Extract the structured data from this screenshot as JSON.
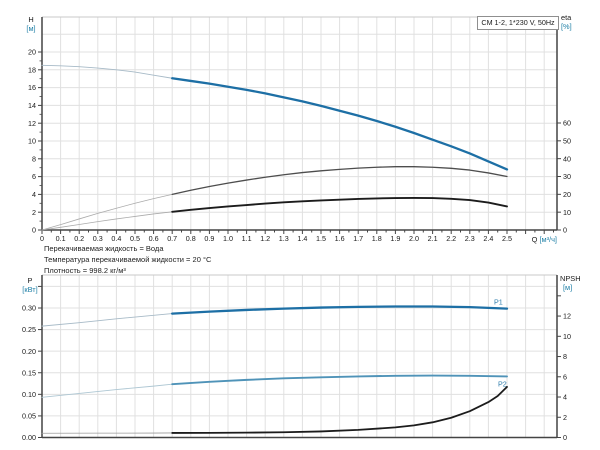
{
  "title_box": {
    "label": "CM 1-2, 1*230 V, 50Hz"
  },
  "conditions": {
    "line1": "Перекачиваемая жидкость = Вода",
    "line2": "Температура перекачиваемой жидкости = 20 °C",
    "line3": "Плотность = 998.2 кг/м³"
  },
  "axis_titles": {
    "head": "H",
    "head_unit": "[м]",
    "eta": "eta",
    "eta_unit": "[%]",
    "power": "P",
    "power_unit": "[кВт]",
    "npsh": "NPSH",
    "npsh_unit": "[м]",
    "flow": "Q",
    "flow_unit": "[м³/ч]"
  },
  "colors": {
    "accent_blue": "#1d6fa5",
    "light_blue": "#4f93b8",
    "thin_blue": "#a7bac7",
    "thin_light_blue": "#aec7d3",
    "gray_curve": "#4d4d4d",
    "thin_gray": "#ababab",
    "black_curve": "#1c1c1c",
    "thin_dark": "#9b9b9b",
    "grid": "#e0e0e0",
    "border_light": "#c9c9c9",
    "axis": "#444444",
    "tick_text": "#1a1a1a",
    "unit_text": "#1e7fa6",
    "curve_label": "#2e7cab"
  },
  "chart_data": [
    {
      "type": "line",
      "name": "head-flow-chart",
      "title": "CM 1-2, 1*230 V, 50Hz",
      "xlabel": "Q [м³/ч]",
      "ylabel_left": "H [м]",
      "ylabel_right": "eta [%]",
      "x_range": [
        0,
        2.77
      ],
      "x_data_max": 2.5,
      "x_tick_step": 0.1,
      "x_minor_step": 0.05,
      "x_tick_labels": [
        "0",
        "0.1",
        "0.2",
        "0.3",
        "0.4",
        "0.5",
        "0.6",
        "0.7",
        "0.8",
        "0.9",
        "1.0",
        "1.1",
        "1.2",
        "1.3",
        "1.4",
        "1.5",
        "1.6",
        "1.7",
        "1.8",
        "1.9",
        "2.0",
        "2.1",
        "2.2",
        "2.3",
        "2.4",
        "2.5"
      ],
      "y_left_ticks": [
        [
          "0",
          0
        ],
        [
          "2",
          2
        ],
        [
          "4",
          4
        ],
        [
          "6",
          6
        ],
        [
          "8",
          8
        ],
        [
          "10",
          10
        ],
        [
          "12",
          12
        ],
        [
          "14",
          14
        ],
        [
          "16",
          16
        ],
        [
          "18",
          18
        ],
        [
          "20",
          20
        ]
      ],
      "y_left_grid_step": 2,
      "y_right_ticks": [
        [
          "0",
          0
        ],
        [
          "10",
          10
        ],
        [
          "20",
          20
        ],
        [
          "30",
          30
        ],
        [
          "40",
          40
        ],
        [
          "50",
          50
        ],
        [
          "60",
          60
        ]
      ],
      "grid": true,
      "legend_position": "none",
      "duty_range_start": 0.7,
      "series": [
        {
          "name": "H",
          "axis": "left",
          "points": [
            [
              0,
              18.5
            ],
            [
              0.1,
              18.45
            ],
            [
              0.2,
              18.35
            ],
            [
              0.3,
              18.2
            ],
            [
              0.4,
              18.0
            ],
            [
              0.5,
              17.75
            ],
            [
              0.6,
              17.4
            ],
            [
              0.7,
              17.05
            ],
            [
              0.8,
              16.75
            ],
            [
              0.9,
              16.45
            ],
            [
              1.0,
              16.1
            ],
            [
              1.1,
              15.75
            ],
            [
              1.2,
              15.35
            ],
            [
              1.3,
              14.9
            ],
            [
              1.4,
              14.45
            ],
            [
              1.5,
              13.95
            ],
            [
              1.6,
              13.4
            ],
            [
              1.7,
              12.85
            ],
            [
              1.8,
              12.25
            ],
            [
              1.9,
              11.6
            ],
            [
              2.0,
              10.9
            ],
            [
              2.1,
              10.15
            ],
            [
              2.2,
              9.4
            ],
            [
              2.3,
              8.6
            ],
            [
              2.4,
              7.7
            ],
            [
              2.5,
              6.8
            ]
          ]
        },
        {
          "name": "eta-pump",
          "axis": "right",
          "points": [
            [
              0,
              0
            ],
            [
              0.1,
              3
            ],
            [
              0.2,
              6.2
            ],
            [
              0.3,
              9.3
            ],
            [
              0.4,
              12.2
            ],
            [
              0.5,
              15
            ],
            [
              0.6,
              17.6
            ],
            [
              0.7,
              20
            ],
            [
              0.8,
              22.3
            ],
            [
              0.9,
              24.4
            ],
            [
              1.0,
              26.3
            ],
            [
              1.1,
              28
            ],
            [
              1.2,
              29.6
            ],
            [
              1.3,
              31
            ],
            [
              1.4,
              32.2
            ],
            [
              1.5,
              33.2
            ],
            [
              1.6,
              34
            ],
            [
              1.7,
              34.7
            ],
            [
              1.8,
              35.2
            ],
            [
              1.9,
              35.5
            ],
            [
              2.0,
              35.5
            ],
            [
              2.1,
              35.2
            ],
            [
              2.2,
              34.6
            ],
            [
              2.3,
              33.6
            ],
            [
              2.4,
              32
            ],
            [
              2.5,
              30
            ]
          ]
        },
        {
          "name": "eta-pump-motor",
          "axis": "right",
          "points": [
            [
              0,
              0
            ],
            [
              0.1,
              1.5
            ],
            [
              0.2,
              3.1
            ],
            [
              0.3,
              4.7
            ],
            [
              0.4,
              6.2
            ],
            [
              0.5,
              7.6
            ],
            [
              0.6,
              9
            ],
            [
              0.7,
              10.2
            ],
            [
              0.8,
              11.3
            ],
            [
              0.9,
              12.3
            ],
            [
              1.0,
              13.2
            ],
            [
              1.1,
              14
            ],
            [
              1.2,
              14.8
            ],
            [
              1.3,
              15.5
            ],
            [
              1.4,
              16.1
            ],
            [
              1.5,
              16.6
            ],
            [
              1.6,
              17
            ],
            [
              1.7,
              17.4
            ],
            [
              1.8,
              17.7
            ],
            [
              1.9,
              17.9
            ],
            [
              2.0,
              18
            ],
            [
              2.1,
              17.9
            ],
            [
              2.2,
              17.5
            ],
            [
              2.3,
              16.8
            ],
            [
              2.4,
              15.4
            ],
            [
              2.5,
              13.2
            ]
          ]
        }
      ]
    },
    {
      "type": "line",
      "name": "power-npsh-chart",
      "xlabel": "",
      "ylabel_left": "P [кВт]",
      "ylabel_right": "NPSH [м]",
      "x_range": [
        0,
        2.77
      ],
      "x_data_max": 2.5,
      "x_tick_labels": [],
      "y_left_ticks": [
        [
          "0.00",
          0
        ],
        [
          "0.05",
          0.05
        ],
        [
          "0.10",
          0.1
        ],
        [
          "0.15",
          0.15
        ],
        [
          "0.20",
          0.2
        ],
        [
          "0.25",
          0.25
        ],
        [
          "0.30",
          0.3
        ],
        [
          "",
          0.35
        ]
      ],
      "y_left_grid_step": 0.05,
      "y_right_ticks": [
        [
          "0",
          0
        ],
        [
          "2",
          2
        ],
        [
          "4",
          4
        ],
        [
          "6",
          6
        ],
        [
          "8",
          8
        ],
        [
          "10",
          10
        ],
        [
          "12",
          12
        ],
        [
          "",
          14
        ]
      ],
      "grid": true,
      "legend_position": "inline-curve-labels",
      "duty_range_start": 0.7,
      "series": [
        {
          "name": "P1",
          "label": "P1",
          "axis": "left",
          "points": [
            [
              0,
              0.258
            ],
            [
              0.2,
              0.266
            ],
            [
              0.4,
              0.275
            ],
            [
              0.6,
              0.283
            ],
            [
              0.7,
              0.287
            ],
            [
              0.9,
              0.2915
            ],
            [
              1.1,
              0.2955
            ],
            [
              1.3,
              0.2985
            ],
            [
              1.5,
              0.301
            ],
            [
              1.7,
              0.3025
            ],
            [
              1.9,
              0.3035
            ],
            [
              2.1,
              0.3035
            ],
            [
              2.3,
              0.302
            ],
            [
              2.5,
              0.2985
            ]
          ]
        },
        {
          "name": "P2",
          "label": "P2",
          "axis": "left",
          "points": [
            [
              0,
              0.093
            ],
            [
              0.2,
              0.102
            ],
            [
              0.4,
              0.111
            ],
            [
              0.6,
              0.119
            ],
            [
              0.7,
              0.1235
            ],
            [
              0.9,
              0.129
            ],
            [
              1.1,
              0.1335
            ],
            [
              1.3,
              0.137
            ],
            [
              1.5,
              0.1395
            ],
            [
              1.7,
              0.1415
            ],
            [
              1.9,
              0.143
            ],
            [
              2.1,
              0.1435
            ],
            [
              2.3,
              0.143
            ],
            [
              2.5,
              0.1415
            ]
          ]
        },
        {
          "name": "NPSH",
          "axis": "right",
          "points": [
            [
              0,
              0.42
            ],
            [
              0.3,
              0.43
            ],
            [
              0.6,
              0.44
            ],
            [
              0.7,
              0.45
            ],
            [
              0.9,
              0.46
            ],
            [
              1.1,
              0.48
            ],
            [
              1.3,
              0.52
            ],
            [
              1.5,
              0.6
            ],
            [
              1.7,
              0.75
            ],
            [
              1.9,
              1.0
            ],
            [
              2.0,
              1.2
            ],
            [
              2.1,
              1.5
            ],
            [
              2.2,
              1.95
            ],
            [
              2.3,
              2.6
            ],
            [
              2.4,
              3.5
            ],
            [
              2.45,
              4.1
            ],
            [
              2.5,
              5.0
            ]
          ]
        }
      ]
    }
  ]
}
